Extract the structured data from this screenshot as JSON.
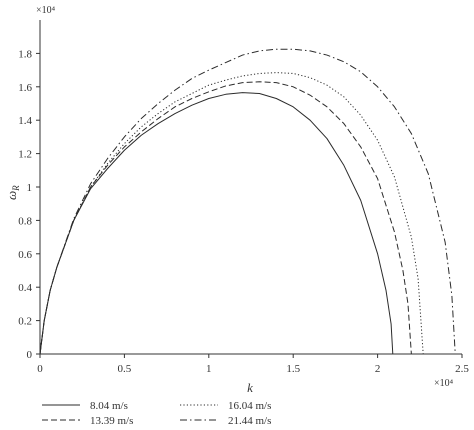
{
  "chart_data": {
    "type": "line",
    "title": "",
    "xlabel": "k",
    "ylabel": "ω",
    "ylabel_sub": "R",
    "x_exponent": "×10⁴",
    "y_exponent": "×10⁴",
    "xlim": [
      0,
      2.5
    ],
    "ylim": [
      0,
      2
    ],
    "x_ticks": [
      0,
      0.5,
      1,
      1.5,
      2,
      2.5
    ],
    "x_tick_labels": [
      "0",
      "0.5",
      "1",
      "1.5",
      "2",
      "2.5"
    ],
    "y_ticks": [
      0,
      0.2,
      0.4,
      0.6,
      0.8,
      1,
      1.2,
      1.4,
      1.6,
      1.8
    ],
    "y_tick_labels": [
      "0",
      "0.2",
      "0.4",
      "0.6",
      "0.8",
      "1",
      "1.2",
      "1.4",
      "1.6",
      "1.8"
    ],
    "grid": false,
    "legend_position": "bottom",
    "series": [
      {
        "name": "8.04 m/s",
        "dash": "solid",
        "x": [
          0,
          0.025,
          0.06,
          0.1,
          0.2,
          0.3,
          0.4,
          0.5,
          0.6,
          0.7,
          0.8,
          0.9,
          1.0,
          1.1,
          1.2,
          1.3,
          1.4,
          1.5,
          1.6,
          1.7,
          1.8,
          1.9,
          2.0,
          2.05,
          2.08,
          2.09
        ],
        "y": [
          0,
          0.2,
          0.38,
          0.52,
          0.8,
          0.99,
          1.11,
          1.22,
          1.31,
          1.38,
          1.44,
          1.49,
          1.53,
          1.555,
          1.565,
          1.56,
          1.53,
          1.48,
          1.4,
          1.29,
          1.13,
          0.92,
          0.6,
          0.38,
          0.18,
          0
        ]
      },
      {
        "name": "13.39 m/s",
        "dash": "dashed",
        "x": [
          0,
          0.025,
          0.06,
          0.1,
          0.2,
          0.3,
          0.4,
          0.5,
          0.6,
          0.7,
          0.8,
          0.9,
          1.0,
          1.1,
          1.2,
          1.3,
          1.4,
          1.5,
          1.6,
          1.7,
          1.8,
          1.9,
          2.0,
          2.1,
          2.15,
          2.18,
          2.2
        ],
        "y": [
          0,
          0.2,
          0.38,
          0.52,
          0.8,
          1.0,
          1.13,
          1.24,
          1.33,
          1.41,
          1.48,
          1.53,
          1.57,
          1.605,
          1.625,
          1.63,
          1.625,
          1.6,
          1.55,
          1.48,
          1.38,
          1.24,
          1.05,
          0.73,
          0.5,
          0.3,
          0
        ]
      },
      {
        "name": "16.04 m/s",
        "dash": "dotted",
        "x": [
          0,
          0.025,
          0.06,
          0.1,
          0.2,
          0.3,
          0.4,
          0.5,
          0.6,
          0.7,
          0.8,
          0.9,
          1.0,
          1.1,
          1.2,
          1.3,
          1.4,
          1.5,
          1.6,
          1.7,
          1.8,
          1.9,
          2.0,
          2.1,
          2.2,
          2.24,
          2.27
        ],
        "y": [
          0,
          0.2,
          0.38,
          0.52,
          0.8,
          1.0,
          1.14,
          1.26,
          1.36,
          1.44,
          1.51,
          1.56,
          1.61,
          1.64,
          1.665,
          1.68,
          1.685,
          1.68,
          1.655,
          1.61,
          1.54,
          1.43,
          1.28,
          1.06,
          0.7,
          0.45,
          0
        ]
      },
      {
        "name": "21.44 m/s",
        "dash": "dashdot",
        "x": [
          0,
          0.025,
          0.06,
          0.1,
          0.2,
          0.3,
          0.4,
          0.5,
          0.6,
          0.7,
          0.8,
          0.9,
          1.0,
          1.1,
          1.2,
          1.3,
          1.4,
          1.5,
          1.6,
          1.7,
          1.8,
          1.9,
          2.0,
          2.1,
          2.2,
          2.3,
          2.4,
          2.44,
          2.46
        ],
        "y": [
          0,
          0.2,
          0.38,
          0.52,
          0.81,
          1.02,
          1.17,
          1.3,
          1.41,
          1.5,
          1.58,
          1.65,
          1.7,
          1.745,
          1.79,
          1.815,
          1.825,
          1.825,
          1.815,
          1.79,
          1.75,
          1.69,
          1.6,
          1.48,
          1.32,
          1.08,
          0.67,
          0.35,
          0
        ]
      }
    ]
  },
  "colors": {
    "line": "#2b2b2b",
    "axis": "#333333",
    "background": "#ffffff"
  }
}
